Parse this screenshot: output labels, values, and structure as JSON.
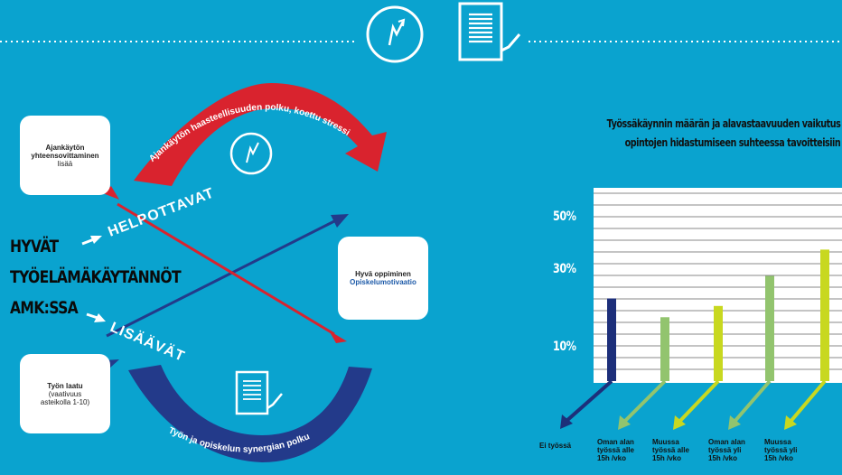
{
  "labels": {
    "helpottavat": "HELPOTTAVAT",
    "lisaavat": "LISÄÄVÄT",
    "top_arc": "Ajankäytön haasteellisuuden polku, koettu stressi",
    "bottom_arc": "Työn ja opiskelun synergian polku"
  },
  "boxes": {
    "time": {
      "title": "Ajankäytön yhteensovittaminen",
      "sub": "lisää"
    },
    "work": {
      "title": "Työn laatu",
      "sub1": "(vaativuus",
      "sub2": "asteikolla 1-10)"
    },
    "learning": {
      "title": "Hyvä oppiminen",
      "sub": "Opiskelumotivaatio"
    }
  },
  "heading": {
    "line1": "HYVÄT",
    "line2": "TYÖELÄMÄKÄYTÄNNÖT",
    "line3": "AMK:SSA"
  },
  "colors": {
    "background": "#0aa3cf",
    "red": "#d9232e",
    "navy": "#233a8a",
    "bar_navy": "#1d2f7a",
    "bar_green": "#92c46e",
    "bar_lime": "#c8d820"
  },
  "icons": [
    "clock-icon",
    "document-check-icon"
  ],
  "chart_data": {
    "type": "bar",
    "title_line1": "Työssäkäynnin määrän ja alavastaavuuden vaikutus",
    "title_line2": "opintojen hidastumiseen suhteessa tavoitteisiin",
    "y_tick_labels": [
      "50%",
      "30%",
      "10%"
    ],
    "ylim": [
      0,
      50
    ],
    "categories": [
      {
        "lines": [
          "Ei työssä"
        ]
      },
      {
        "lines": [
          "Oman alan",
          "työssä alle",
          "15h /vko"
        ]
      },
      {
        "lines": [
          "Muussa",
          "työssä alle",
          "15h /vko"
        ]
      },
      {
        "lines": [
          "Oman alan",
          "työssä yli",
          "15h /vko"
        ]
      },
      {
        "lines": [
          "Muussa",
          "työssä yli",
          "15h /vko"
        ]
      }
    ],
    "values": [
      22,
      17,
      20,
      28,
      35
    ],
    "bar_colors": [
      "#1d2f7a",
      "#92c46e",
      "#c8d820",
      "#92c46e",
      "#c8d820"
    ]
  }
}
